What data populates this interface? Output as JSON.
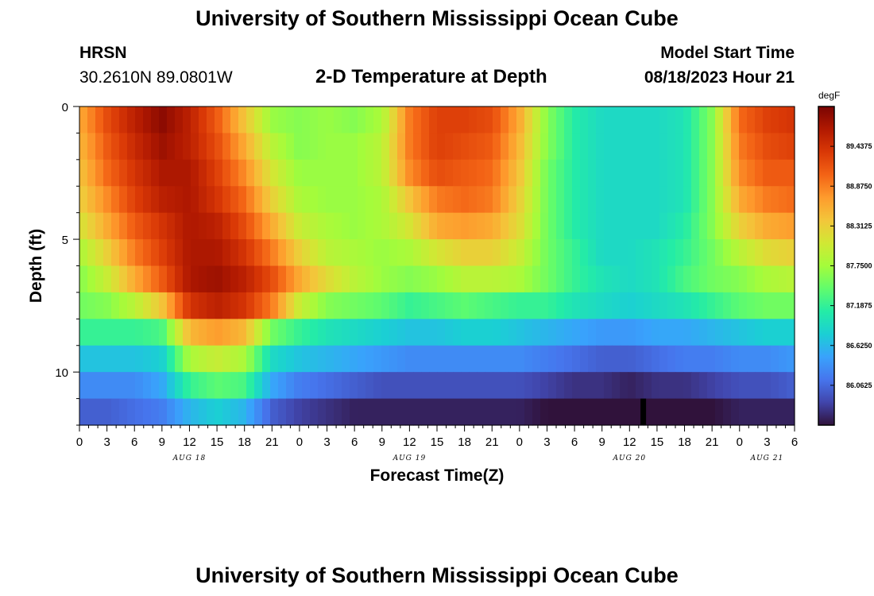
{
  "header": {
    "title": "University of Southern Mississippi Ocean Cube",
    "station_id": "HRSN",
    "station_coords": "30.2610N  89.0801W",
    "subtitle": "2-D Temperature at Depth",
    "model_start_label": "Model Start Time",
    "model_start_value": "08/18/2023 Hour 21"
  },
  "footer": {
    "title": "University of Southern Mississippi Ocean Cube"
  },
  "chart_data": {
    "type": "heatmap",
    "title": "2-D Temperature at Depth",
    "xlabel": "Forecast Time(Z)",
    "ylabel": "Depth (ft)",
    "x_tick_labels": [
      "0",
      "3",
      "6",
      "9",
      "12",
      "15",
      "18",
      "21",
      "0",
      "3",
      "6",
      "9",
      "12",
      "15",
      "18",
      "21",
      "0",
      "3",
      "6",
      "9",
      "12",
      "15",
      "18",
      "21",
      "0",
      "3",
      "6"
    ],
    "x_date_labels": [
      {
        "label": "AUG 18",
        "hour_index": 12
      },
      {
        "label": "AUG 19",
        "hour_index": 36
      },
      {
        "label": "AUG 20",
        "hour_index": 60
      },
      {
        "label": "AUG 21",
        "hour_index": 75
      }
    ],
    "x_range_hours": [
      0,
      78
    ],
    "y_tick_labels": [
      "0",
      "5",
      "10"
    ],
    "y_range_ft": [
      0,
      12
    ],
    "colorbar": {
      "unit": "degF",
      "range": [
        85.5,
        90.0
      ],
      "tick_labels": [
        "89.4375",
        "88.8750",
        "88.3125",
        "87.7500",
        "87.1875",
        "86.6250",
        "86.0625"
      ],
      "colors": [
        "#30123b",
        "#4145ab",
        "#4675ed",
        "#39a2fc",
        "#1bcfd4",
        "#24eca6",
        "#61fc6c",
        "#a4fc3b",
        "#d1e834",
        "#f3c63a",
        "#fe9b2d",
        "#f36315",
        "#d93806",
        "#b11901",
        "#7a0402"
      ]
    },
    "depth_levels_ft": [
      0.5,
      1.5,
      2.5,
      3.5,
      4.5,
      5.5,
      6.5,
      7.5,
      8.5,
      9.5,
      10.5,
      11.5
    ],
    "time_keypoints_hours": [
      0,
      3,
      6,
      9,
      12,
      15,
      18,
      21,
      24,
      27,
      30,
      33,
      36,
      39,
      42,
      45,
      48,
      51,
      54,
      57,
      60,
      63,
      66,
      69,
      72,
      75,
      78
    ],
    "temperature_degF": [
      [
        88.6,
        89.2,
        89.6,
        89.9,
        89.6,
        89.1,
        88.4,
        87.7,
        87.6,
        87.7,
        87.6,
        87.8,
        88.9,
        89.3,
        89.3,
        89.2,
        88.6,
        87.6,
        87.1,
        86.9,
        86.9,
        86.9,
        87.0,
        87.6,
        89.0,
        89.3,
        89.4
      ],
      [
        88.5,
        89.1,
        89.5,
        89.8,
        89.6,
        89.2,
        88.6,
        87.9,
        87.6,
        87.7,
        87.7,
        87.9,
        88.9,
        89.3,
        89.2,
        89.1,
        88.5,
        87.6,
        87.1,
        86.9,
        86.9,
        86.9,
        87.0,
        87.6,
        88.9,
        89.2,
        89.3
      ],
      [
        88.4,
        89.0,
        89.4,
        89.7,
        89.7,
        89.3,
        88.8,
        88.1,
        87.7,
        87.7,
        87.7,
        87.9,
        88.8,
        89.2,
        89.1,
        89.0,
        88.4,
        87.5,
        87.1,
        86.9,
        86.9,
        86.9,
        87.0,
        87.6,
        88.8,
        89.1,
        89.1
      ],
      [
        88.3,
        88.8,
        89.3,
        89.6,
        89.7,
        89.4,
        89.0,
        88.3,
        87.8,
        87.7,
        87.7,
        87.8,
        88.4,
        88.9,
        89.0,
        88.9,
        88.3,
        87.5,
        87.1,
        86.9,
        86.9,
        86.9,
        87.0,
        87.6,
        88.6,
        88.9,
        89.0
      ],
      [
        88.1,
        88.6,
        89.1,
        89.4,
        89.7,
        89.6,
        89.2,
        88.6,
        88.0,
        87.8,
        87.7,
        87.8,
        88.1,
        88.6,
        88.7,
        88.6,
        88.2,
        87.5,
        87.1,
        86.9,
        86.9,
        86.9,
        87.1,
        87.6,
        88.3,
        88.6,
        88.7
      ],
      [
        87.8,
        88.3,
        88.9,
        89.3,
        89.7,
        89.7,
        89.4,
        88.9,
        88.3,
        87.9,
        87.8,
        87.7,
        87.8,
        88.1,
        88.3,
        88.3,
        88.0,
        87.5,
        87.2,
        86.9,
        86.9,
        87.0,
        87.2,
        87.5,
        87.9,
        88.2,
        88.3
      ],
      [
        87.6,
        88.0,
        88.6,
        89.1,
        89.7,
        89.8,
        89.6,
        89.2,
        88.6,
        88.2,
        87.9,
        87.7,
        87.6,
        87.7,
        87.9,
        87.9,
        87.8,
        87.5,
        87.2,
        87.0,
        86.9,
        87.0,
        87.3,
        87.5,
        87.6,
        87.8,
        87.9
      ],
      [
        87.5,
        87.6,
        87.9,
        88.4,
        89.4,
        89.6,
        89.4,
        88.9,
        88.0,
        87.6,
        87.5,
        87.4,
        87.2,
        87.3,
        87.4,
        87.3,
        87.2,
        87.2,
        87.0,
        86.9,
        86.8,
        86.9,
        87.0,
        87.2,
        87.4,
        87.5,
        87.5
      ],
      [
        87.2,
        87.2,
        87.2,
        87.3,
        88.5,
        88.7,
        88.5,
        87.5,
        87.2,
        87.0,
        86.9,
        86.8,
        86.7,
        86.7,
        86.8,
        86.8,
        86.7,
        86.6,
        86.5,
        86.4,
        86.4,
        86.5,
        86.5,
        86.6,
        86.7,
        86.8,
        86.8
      ],
      [
        86.7,
        86.7,
        86.7,
        86.8,
        87.8,
        88.0,
        87.8,
        86.9,
        86.7,
        86.6,
        86.5,
        86.4,
        86.3,
        86.3,
        86.3,
        86.3,
        86.3,
        86.2,
        86.1,
        86.0,
        86.0,
        86.1,
        86.2,
        86.2,
        86.3,
        86.3,
        86.4
      ],
      [
        86.3,
        86.3,
        86.3,
        86.5,
        87.2,
        87.4,
        87.3,
        86.5,
        86.2,
        86.1,
        86.0,
        85.9,
        85.9,
        85.9,
        85.9,
        85.9,
        85.9,
        85.8,
        85.7,
        85.7,
        85.6,
        85.7,
        85.7,
        85.8,
        85.9,
        85.9,
        86.0
      ],
      [
        86.0,
        86.0,
        86.1,
        86.2,
        86.6,
        86.8,
        86.6,
        86.0,
        85.8,
        85.7,
        85.6,
        85.6,
        85.6,
        85.6,
        85.6,
        85.6,
        85.6,
        85.5,
        85.4,
        85.3,
        85.2,
        85.3,
        85.4,
        85.5,
        85.6,
        85.6,
        85.6
      ]
    ],
    "marker": {
      "hour": 61.5,
      "depth_ft": 11.5,
      "label": ""
    }
  }
}
